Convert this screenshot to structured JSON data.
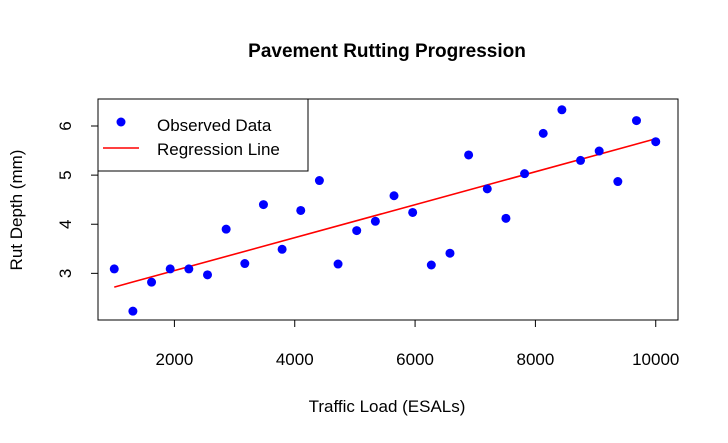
{
  "chart_data": {
    "type": "scatter",
    "title": "Pavement Rutting Progression",
    "xlabel": "Traffic Load (ESALs)",
    "ylabel": "Rut Depth (mm)",
    "xlim": [
      730,
      10370
    ],
    "ylim": [
      2.05,
      6.55
    ],
    "x_ticks": [
      2000,
      4000,
      6000,
      8000,
      10000
    ],
    "y_ticks": [
      3,
      4,
      5,
      6
    ],
    "x_tick_labels": [
      "2000",
      "4000",
      "6000",
      "8000",
      "10000"
    ],
    "y_tick_labels": [
      "3",
      "4",
      "5",
      "6"
    ],
    "grid": false,
    "legend_position": "top-left",
    "legend": [
      {
        "label": "Observed Data",
        "kind": "point",
        "color": "#0000ff"
      },
      {
        "label": "Regression Line",
        "kind": "line",
        "color": "#ff0000"
      }
    ],
    "series": [
      {
        "name": "Observed Data",
        "kind": "point",
        "color": "#0000ff",
        "points": [
          {
            "x": 1000,
            "y": 3.09
          },
          {
            "x": 1310,
            "y": 2.23
          },
          {
            "x": 1620,
            "y": 2.82
          },
          {
            "x": 1930,
            "y": 3.09
          },
          {
            "x": 2240,
            "y": 3.09
          },
          {
            "x": 2550,
            "y": 2.97
          },
          {
            "x": 2860,
            "y": 3.9
          },
          {
            "x": 3170,
            "y": 3.2
          },
          {
            "x": 3480,
            "y": 4.4
          },
          {
            "x": 3790,
            "y": 3.49
          },
          {
            "x": 4100,
            "y": 4.28
          },
          {
            "x": 4410,
            "y": 4.89
          },
          {
            "x": 4720,
            "y": 3.19
          },
          {
            "x": 5030,
            "y": 3.87
          },
          {
            "x": 5340,
            "y": 4.06
          },
          {
            "x": 5650,
            "y": 4.58
          },
          {
            "x": 5960,
            "y": 4.24
          },
          {
            "x": 6270,
            "y": 3.17
          },
          {
            "x": 6580,
            "y": 3.41
          },
          {
            "x": 6890,
            "y": 5.41
          },
          {
            "x": 7200,
            "y": 4.72
          },
          {
            "x": 7510,
            "y": 4.12
          },
          {
            "x": 7820,
            "y": 5.03
          },
          {
            "x": 8130,
            "y": 5.85
          },
          {
            "x": 8440,
            "y": 6.33
          },
          {
            "x": 8750,
            "y": 5.3
          },
          {
            "x": 9060,
            "y": 5.49
          },
          {
            "x": 9370,
            "y": 4.87
          },
          {
            "x": 9680,
            "y": 6.11
          },
          {
            "x": 10000,
            "y": 5.68
          }
        ]
      },
      {
        "name": "Regression Line",
        "kind": "line",
        "color": "#ff0000",
        "points": [
          {
            "x": 1000,
            "y": 2.72
          },
          {
            "x": 10000,
            "y": 5.74
          }
        ]
      }
    ]
  }
}
